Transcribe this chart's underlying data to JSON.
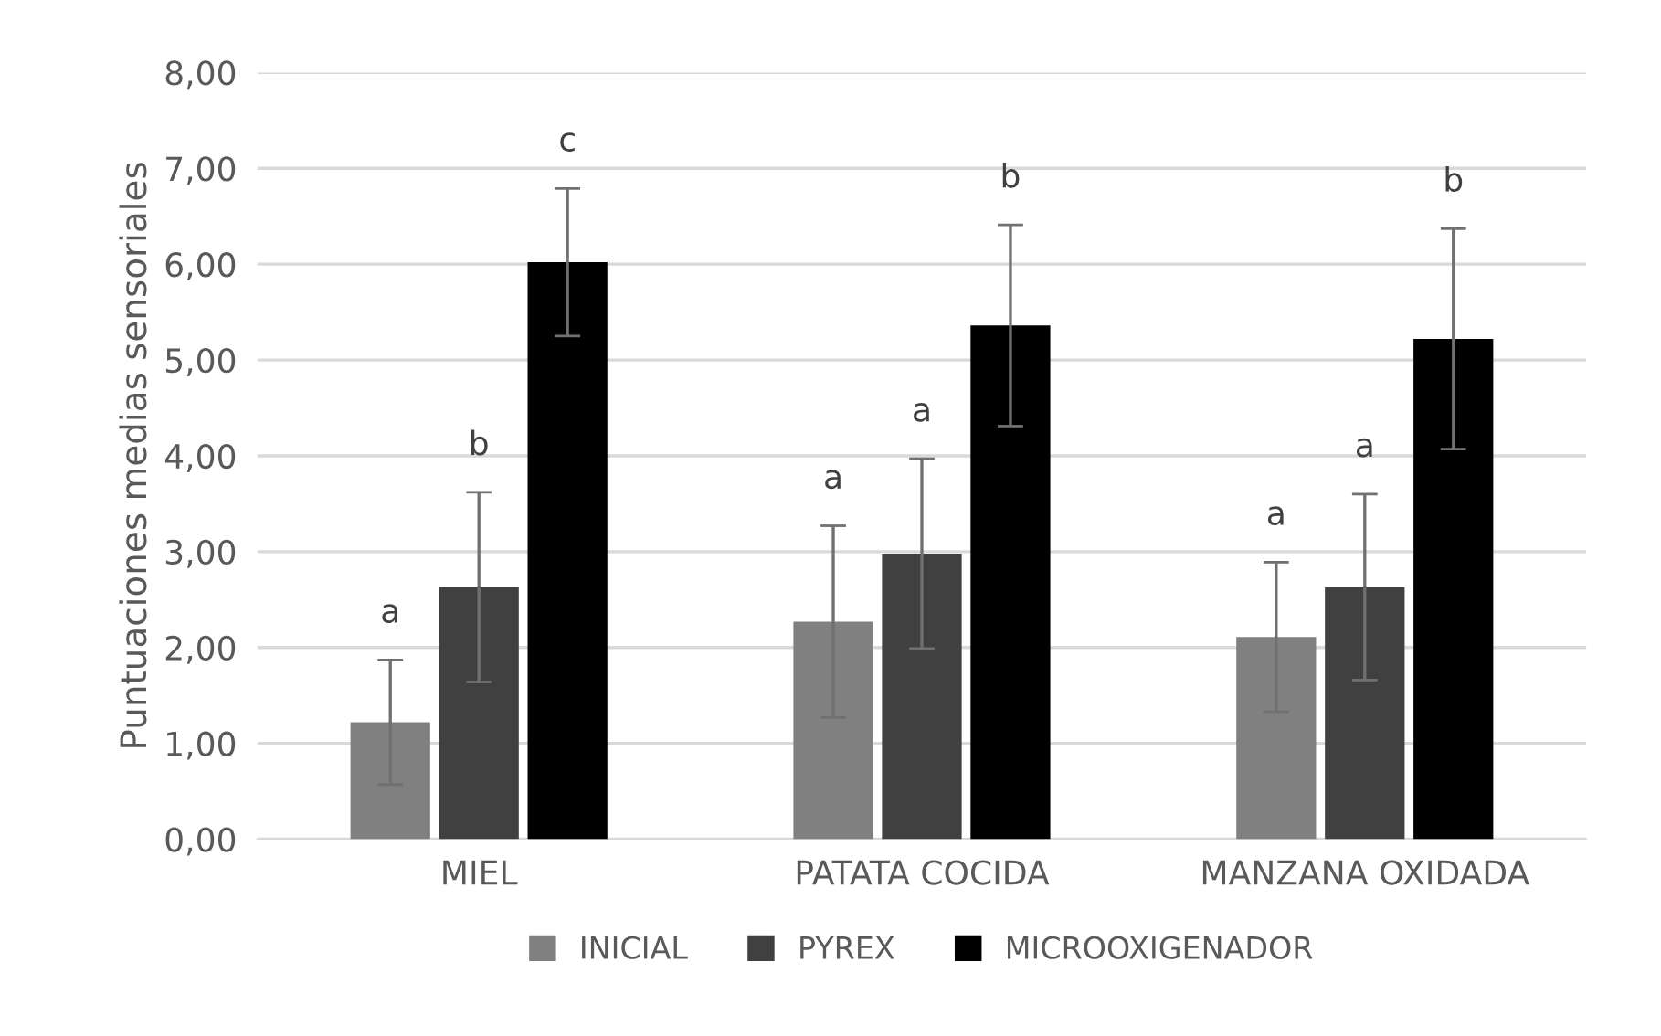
{
  "chart_data": {
    "type": "bar",
    "ylabel": "Puntuaciones medias sensoriales",
    "categories": [
      "MIEL",
      "PATATA COCIDA",
      "MANZANA OXIDADA"
    ],
    "series": [
      {
        "name": "INICIAL",
        "color": "#808080",
        "values": [
          1.22,
          2.27,
          2.11
        ],
        "errors": [
          0.65,
          1.0,
          0.78
        ]
      },
      {
        "name": "PYREX",
        "color": "#404040",
        "values": [
          2.63,
          2.98,
          2.63
        ],
        "errors": [
          0.99,
          0.99,
          0.97
        ]
      },
      {
        "name": "MICROOXIGENADOR",
        "color": "#000000",
        "values": [
          6.02,
          5.36,
          5.22
        ],
        "errors": [
          0.77,
          1.05,
          1.15
        ]
      }
    ],
    "annotations": [
      "a",
      "b",
      "c",
      "a",
      "a",
      "b",
      "a",
      "a",
      "b"
    ],
    "ylim": [
      0,
      8
    ],
    "yticks": [
      {
        "value": 0,
        "label": "0,00"
      },
      {
        "value": 1,
        "label": "1,00"
      },
      {
        "value": 2,
        "label": "2,00"
      },
      {
        "value": 3,
        "label": "3,00"
      },
      {
        "value": 4,
        "label": "4,00"
      },
      {
        "value": 5,
        "label": "5,00"
      },
      {
        "value": 6,
        "label": "6,00"
      },
      {
        "value": 7,
        "label": "7,00"
      },
      {
        "value": 8,
        "label": "8,00"
      }
    ],
    "grid": "y",
    "legend": "bottom"
  }
}
